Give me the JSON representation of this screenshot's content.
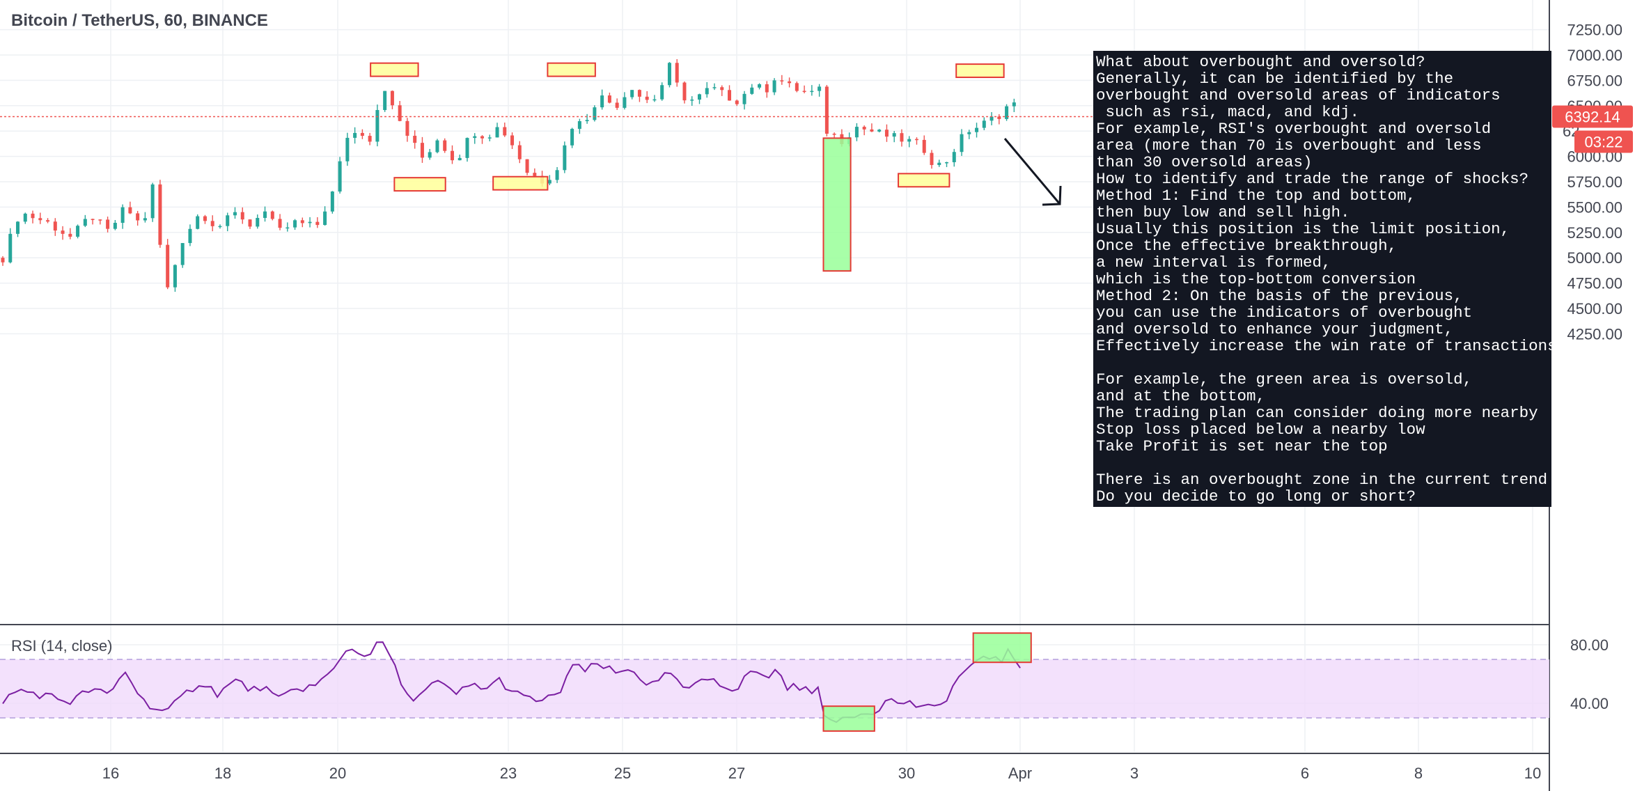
{
  "title": "Bitcoin / TetherUS, 60, BINANCE",
  "rsi_label": "RSI (14, close)",
  "price_badge": "6392.14",
  "time_badge": "03:22",
  "colors": {
    "up": "#26a69a",
    "down": "#ef5350",
    "rsi_line": "#7b1fa2",
    "rsi_band": "#f0d9fb",
    "rect_yellow_fill": "#ffff99",
    "rect_green_fill": "#99ff99",
    "rect_border": "#e53935",
    "badge": "#ef5350",
    "note_bg": "#131722"
  },
  "note_lines": [
    "What about overbought and oversold?",
    "Generally, it can be identified by the",
    "overbought and oversold areas of indicators",
    " such as rsi, macd, and kdj.",
    "For example, RSI's overbought and oversold",
    "area (more than 70 is overbought and less",
    "than 30 oversold areas)",
    "How to identify and trade the range of shocks?",
    "Method 1: Find the top and bottom,",
    "then buy low and sell high.",
    "Usually this position is the limit position,",
    "Once the effective breakthrough,",
    "a new interval is formed,",
    "which is the top-bottom conversion",
    "Method 2: On the basis of the previous,",
    "you can use the indicators of overbought",
    "and oversold to enhance your judgment,",
    "Effectively increase the win rate of transactions",
    "",
    "For example, the green area is oversold,",
    "and at the bottom,",
    "The trading plan can consider doing more nearby",
    "Stop loss placed below a nearby low",
    "Take Profit is set near the top",
    "",
    "There is an overbought zone in the current trend",
    "Do you decide to go long or short?"
  ],
  "chart_data": {
    "type": "candlestick",
    "xlabels": [
      "16",
      "18",
      "20",
      "23",
      "25",
      "27",
      "30",
      "Apr",
      "3",
      "6",
      "8",
      "10"
    ],
    "price_axis_ticks": [
      7250,
      7000,
      6750,
      6500,
      6250,
      6000,
      5750,
      5500,
      5250,
      5000,
      4750,
      4500,
      4250
    ],
    "price_axis_labels": [
      "7250.00",
      "7000.00",
      "6750.00",
      "6500.00",
      "",
      "6000.00",
      "5750.00",
      "5500.00",
      "5250.00",
      "5000.00",
      "4750.00",
      "4500.00",
      "4250.00"
    ],
    "price_label_partial": "62",
    "last_price": 6392.14,
    "price_path": [
      [
        0,
        5000
      ],
      [
        0.5,
        5450
      ],
      [
        1.3,
        5350
      ],
      [
        2,
        5200
      ],
      [
        2.6,
        5420
      ],
      [
        3.1,
        5250
      ],
      [
        3.6,
        5500
      ],
      [
        4.1,
        5300
      ],
      [
        4.4,
        5700
      ],
      [
        4.8,
        4650
      ],
      [
        5.3,
        5200
      ],
      [
        5.8,
        5450
      ],
      [
        6.3,
        5300
      ],
      [
        6.9,
        5450
      ],
      [
        7.3,
        5300
      ],
      [
        7.6,
        5500
      ],
      [
        8.1,
        5250
      ],
      [
        8.6,
        5350
      ],
      [
        9.2,
        5300
      ],
      [
        9.7,
        5650
      ],
      [
        10.1,
        6200
      ],
      [
        10.5,
        6250
      ],
      [
        10.9,
        6150
      ],
      [
        11.1,
        6800
      ],
      [
        11.4,
        6500
      ],
      [
        11.9,
        6200
      ],
      [
        12.4,
        5950
      ],
      [
        12.7,
        6200
      ],
      [
        13.3,
        5950
      ],
      [
        13.8,
        6250
      ],
      [
        14.2,
        6200
      ],
      [
        14.6,
        6300
      ],
      [
        15.0,
        6100
      ],
      [
        15.4,
        5850
      ],
      [
        15.9,
        5750
      ],
      [
        16.3,
        5900
      ],
      [
        16.7,
        6300
      ],
      [
        17.1,
        6350
      ],
      [
        17.5,
        6600
      ],
      [
        18.0,
        6500
      ],
      [
        18.5,
        6700
      ],
      [
        18.8,
        6550
      ],
      [
        19.2,
        6580
      ],
      [
        19.6,
        6900
      ],
      [
        19.9,
        6600
      ],
      [
        20.3,
        6550
      ],
      [
        20.8,
        6680
      ],
      [
        21.2,
        6600
      ],
      [
        21.6,
        6550
      ],
      [
        22.0,
        6700
      ],
      [
        22.4,
        6650
      ],
      [
        22.7,
        6800
      ],
      [
        23.0,
        6700
      ],
      [
        23.4,
        6650
      ],
      [
        23.7,
        6620
      ],
      [
        24.0,
        6650
      ],
      [
        24.1,
        6350
      ],
      [
        24.2,
        6250
      ],
      [
        24.7,
        6150
      ],
      [
        25.0,
        6300
      ],
      [
        25.5,
        6250
      ],
      [
        26.0,
        6200
      ],
      [
        26.6,
        6150
      ],
      [
        27.0,
        6100
      ],
      [
        27.3,
        5950
      ],
      [
        27.6,
        5900
      ],
      [
        28.0,
        6100
      ],
      [
        28.3,
        6250
      ],
      [
        28.7,
        6300
      ],
      [
        29.1,
        6380
      ],
      [
        29.4,
        6440
      ],
      [
        29.6,
        6560
      ],
      [
        29.9,
        6392
      ]
    ],
    "highlights": [
      {
        "series": "price",
        "color": "yellow",
        "x_range": [
          10.8,
          12.2
        ],
        "y_range": [
          6790,
          6920
        ]
      },
      {
        "series": "price",
        "color": "yellow",
        "x_range": [
          16.0,
          17.4
        ],
        "y_range": [
          6790,
          6920
        ]
      },
      {
        "series": "price",
        "color": "yellow",
        "x_range": [
          28.0,
          29.4
        ],
        "y_range": [
          6780,
          6910
        ]
      },
      {
        "series": "price",
        "color": "yellow",
        "x_range": [
          11.5,
          13.0
        ],
        "y_range": [
          5660,
          5790
        ]
      },
      {
        "series": "price",
        "color": "yellow",
        "x_range": [
          14.4,
          16.0
        ],
        "y_range": [
          5670,
          5800
        ]
      },
      {
        "series": "price",
        "color": "yellow",
        "x_range": [
          26.3,
          27.8
        ],
        "y_range": [
          5700,
          5830
        ]
      },
      {
        "series": "price",
        "color": "green",
        "x_range": [
          24.1,
          24.9
        ],
        "y_range": [
          4870,
          6180
        ]
      },
      {
        "series": "rsi",
        "color": "green",
        "x_range": [
          24.1,
          25.6
        ],
        "y_range": [
          21,
          38
        ]
      },
      {
        "series": "rsi",
        "color": "green",
        "x_range": [
          28.5,
          30.2
        ],
        "y_range": [
          68,
          88
        ]
      }
    ],
    "rsi": {
      "ticks": [
        80,
        40
      ],
      "tick_labels": [
        "80.00",
        "40.00"
      ],
      "overbought": 70,
      "oversold": 30,
      "path": [
        [
          0,
          42
        ],
        [
          0.5,
          49
        ],
        [
          1.3,
          45
        ],
        [
          2,
          41
        ],
        [
          2.6,
          50
        ],
        [
          3.1,
          45
        ],
        [
          3.6,
          62
        ],
        [
          4.1,
          42
        ],
        [
          4.4,
          38
        ],
        [
          4.8,
          33
        ],
        [
          5.3,
          45
        ],
        [
          5.8,
          55
        ],
        [
          6.3,
          47
        ],
        [
          6.9,
          56
        ],
        [
          7.3,
          48
        ],
        [
          7.6,
          52
        ],
        [
          8.1,
          42
        ],
        [
          8.6,
          50
        ],
        [
          9.2,
          52
        ],
        [
          9.7,
          62
        ],
        [
          10.1,
          78
        ],
        [
          10.5,
          74
        ],
        [
          10.9,
          75
        ],
        [
          11.1,
          85
        ],
        [
          11.4,
          70
        ],
        [
          11.9,
          43
        ],
        [
          12.4,
          48
        ],
        [
          12.7,
          55
        ],
        [
          13.3,
          46
        ],
        [
          13.8,
          53
        ],
        [
          14.2,
          50
        ],
        [
          14.6,
          56
        ],
        [
          15.0,
          47
        ],
        [
          15.4,
          43
        ],
        [
          15.9,
          42
        ],
        [
          16.3,
          45
        ],
        [
          16.7,
          66
        ],
        [
          17.1,
          62
        ],
        [
          17.5,
          67
        ],
        [
          18.0,
          60
        ],
        [
          18.5,
          64
        ],
        [
          18.8,
          55
        ],
        [
          19.2,
          52
        ],
        [
          19.6,
          62
        ],
        [
          19.9,
          50
        ],
        [
          20.3,
          51
        ],
        [
          20.8,
          58
        ],
        [
          21.2,
          52
        ],
        [
          21.6,
          50
        ],
        [
          22.0,
          64
        ],
        [
          22.4,
          56
        ],
        [
          22.7,
          64
        ],
        [
          23.0,
          52
        ],
        [
          23.4,
          50
        ],
        [
          23.7,
          48
        ],
        [
          24.0,
          55
        ],
        [
          24.1,
          32
        ],
        [
          24.2,
          25
        ],
        [
          24.7,
          30
        ],
        [
          25.0,
          33
        ],
        [
          25.5,
          34
        ],
        [
          26.0,
          42
        ],
        [
          26.6,
          40
        ],
        [
          27.0,
          38
        ],
        [
          27.3,
          35
        ],
        [
          27.6,
          40
        ],
        [
          28.0,
          55
        ],
        [
          28.3,
          64
        ],
        [
          28.7,
          68
        ],
        [
          29.1,
          73
        ],
        [
          29.4,
          70
        ],
        [
          29.6,
          78
        ],
        [
          29.9,
          60
        ]
      ]
    }
  }
}
